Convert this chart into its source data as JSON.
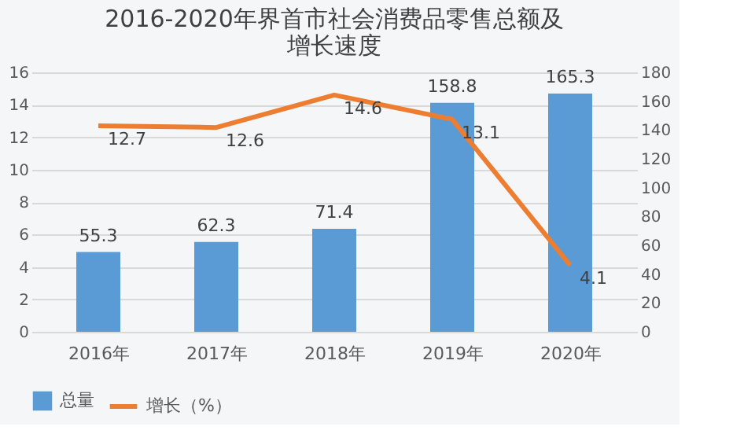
{
  "chart_data": {
    "type": "bar",
    "title": "2016-2020年界首市社会消费品零售总额及增长速度",
    "categories": [
      "2016年",
      "2017年",
      "2018年",
      "2019年",
      "2020年"
    ],
    "series": [
      {
        "name": "总量",
        "type": "bar",
        "axis": "y2",
        "color": "#5b9bd5",
        "values": [
          55.3,
          62.3,
          71.4,
          158.8,
          165.3
        ]
      },
      {
        "name": "增长（%）",
        "type": "line",
        "axis": "y",
        "color": "#ed7d31",
        "values": [
          12.7,
          12.6,
          14.6,
          13.1,
          4.1
        ]
      }
    ],
    "ylim": [
      0,
      16
    ],
    "yticks": [
      0,
      2,
      4,
      6,
      8,
      10,
      12,
      14,
      16
    ],
    "y2lim": [
      0,
      180
    ],
    "y2ticks": [
      0,
      20,
      40,
      60,
      80,
      100,
      120,
      140,
      160,
      180
    ],
    "data_labels": true,
    "grid": "y",
    "legend": "bottom",
    "marker": "none",
    "line_style": "solid"
  }
}
